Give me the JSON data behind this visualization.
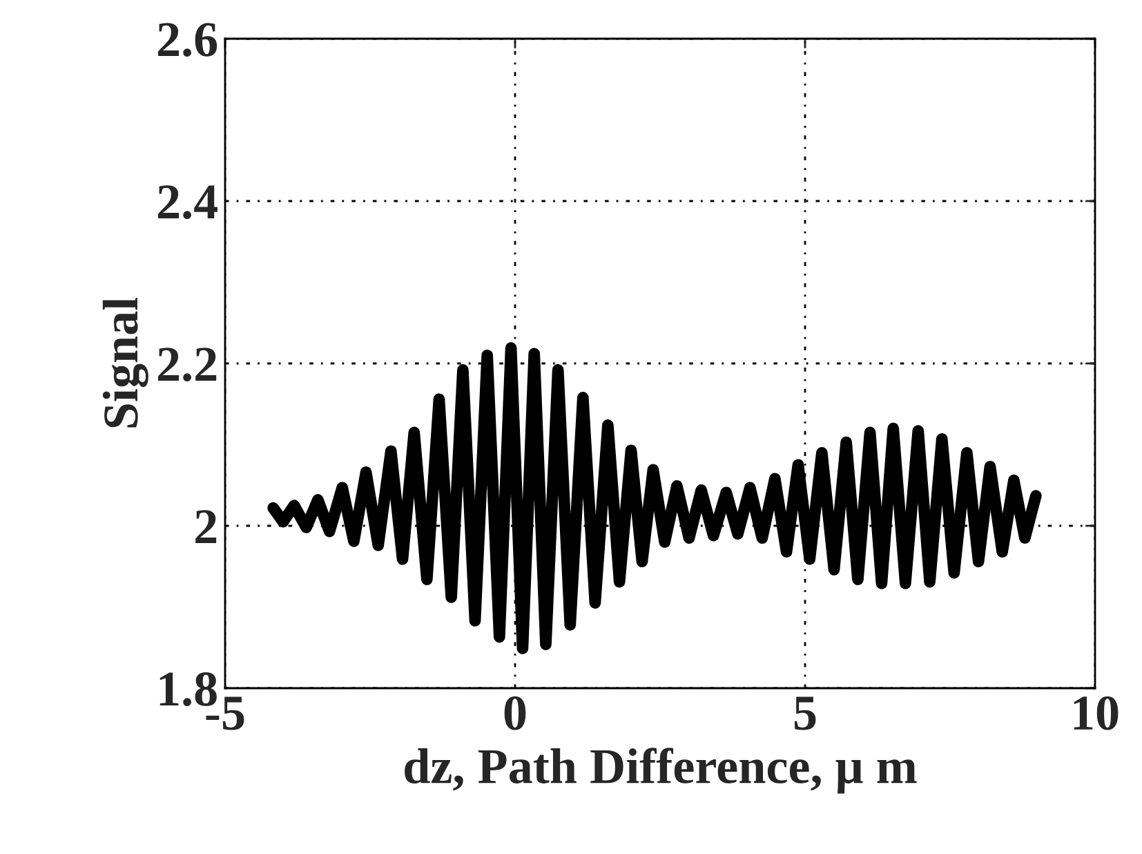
{
  "chart_data": {
    "type": "line",
    "xlabel": "dz, Path Difference, μ m",
    "ylabel": "Signal",
    "xlim": [
      -5,
      10
    ],
    "xticks": [
      -5,
      0,
      5,
      10
    ],
    "ylim": [
      1.8,
      2.6
    ],
    "yticks": [
      1.8,
      2,
      2.2,
      2.4,
      2.6
    ],
    "grid": true,
    "line_style": "solid",
    "series": [
      {
        "color": "#000000",
        "x": [
          -4.17,
          -4.0,
          -3.81,
          -3.6,
          -3.4,
          -3.2,
          -2.98,
          -2.78,
          -2.57,
          -2.36,
          -2.14,
          -1.94,
          -1.74,
          -1.52,
          -1.31,
          -1.1,
          -0.9,
          -0.69,
          -0.48,
          -0.27,
          -0.07,
          0.13,
          0.33,
          0.53,
          0.74,
          0.95,
          1.17,
          1.38,
          1.6,
          1.8,
          2.0,
          2.19,
          2.38,
          2.58,
          2.79,
          3.0,
          3.21,
          3.42,
          3.64,
          3.84,
          4.05,
          4.26,
          4.48,
          4.68,
          4.88,
          5.08,
          5.29,
          5.5,
          5.71,
          5.91,
          6.12,
          6.32,
          6.52,
          6.73,
          6.95,
          7.15,
          7.36,
          7.57,
          7.79,
          7.99,
          8.19,
          8.4,
          8.6,
          8.79,
          8.98
        ],
        "values": [
          2.022,
          2.005,
          2.025,
          1.998,
          2.032,
          1.993,
          2.047,
          1.981,
          2.066,
          1.976,
          2.092,
          1.959,
          2.115,
          1.934,
          2.156,
          1.912,
          2.192,
          1.883,
          2.21,
          1.863,
          2.219,
          1.849,
          2.212,
          1.854,
          2.192,
          1.878,
          2.158,
          1.905,
          2.124,
          1.931,
          2.093,
          1.956,
          2.069,
          1.98,
          2.049,
          1.985,
          2.044,
          1.988,
          2.041,
          1.99,
          2.047,
          1.985,
          2.058,
          1.968,
          2.075,
          1.959,
          2.09,
          1.946,
          2.103,
          1.934,
          2.115,
          1.929,
          2.12,
          1.929,
          2.117,
          1.931,
          2.107,
          1.942,
          2.09,
          1.956,
          2.073,
          1.968,
          2.056,
          1.985,
          2.037
        ]
      }
    ]
  }
}
